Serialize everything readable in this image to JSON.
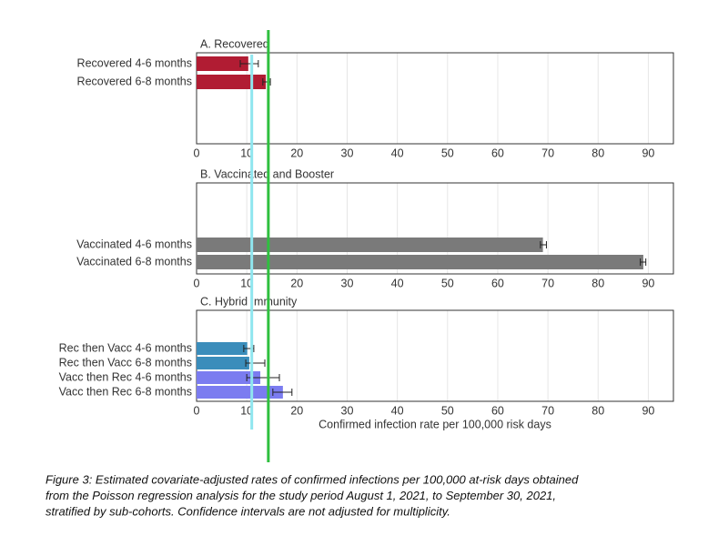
{
  "chart_data": [
    {
      "type": "bar",
      "title": "A. Recovered",
      "categories": [
        "Recovered 4-6 months",
        "Recovered 6-8 months"
      ],
      "values": [
        10.3,
        13.8
      ],
      "lower": [
        8.7,
        13.2
      ],
      "upper": [
        12.3,
        14.7
      ],
      "colors": [
        "#b11c33",
        "#b11c33"
      ],
      "xlim": [
        0,
        95
      ],
      "xticks": [
        0,
        10,
        20,
        30,
        40,
        50,
        60,
        70,
        80,
        90
      ],
      "grid": true
    },
    {
      "type": "bar",
      "title": "B. Vaccinated and Booster",
      "categories": [
        "Vaccinated 4-6 months",
        "Vaccinated 6-8 months"
      ],
      "values": [
        69,
        89
      ],
      "lower": [
        68.5,
        88.4
      ],
      "upper": [
        69.7,
        89.5
      ],
      "colors": [
        "#7a7a7a",
        "#7a7a7a"
      ],
      "xlim": [
        0,
        95
      ],
      "xticks": [
        0,
        10,
        20,
        30,
        40,
        50,
        60,
        70,
        80,
        90
      ],
      "grid": true
    },
    {
      "type": "bar",
      "title": "C. Hybrid Immunity",
      "categories": [
        "Rec then Vacc 4-6 months",
        "Rec then Vacc 6-8 months",
        "Vacc then Rec 4-6 months",
        "Vacc then Rec 6-8 months"
      ],
      "values": [
        10.1,
        10.5,
        12.7,
        17.2
      ],
      "lower": [
        9.4,
        9.8,
        10,
        15.2
      ],
      "upper": [
        11.4,
        13.6,
        16.5,
        19
      ],
      "colors": [
        "#3b8dbb",
        "#3b8dbb",
        "#7b7cf0",
        "#7b7cf0"
      ],
      "xlim": [
        0,
        95
      ],
      "xticks": [
        0,
        10,
        20,
        30,
        40,
        50,
        60,
        70,
        80,
        90
      ],
      "grid": true,
      "x_label": "Confirmed infection rate per 100,000 risk days"
    }
  ],
  "overlay_lines": [
    {
      "color": "#8fe6ef",
      "value": 11
    },
    {
      "color": "#2fbf3f",
      "value": 14.3
    }
  ],
  "caption": [
    "Figure 3: Estimated covariate-adjusted rates of confirmed infections per 100,000 at-risk days obtained",
    "from the Poisson regression analysis for the study period August 1, 2021, to September 30, 2021,",
    "stratified by sub-cohorts. Confidence intervals are not adjusted for multiplicity."
  ]
}
